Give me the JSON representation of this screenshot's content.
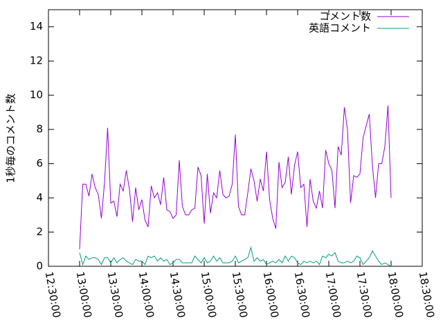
{
  "chart_data": {
    "type": "line",
    "ylabel": "1秒毎のコメント数",
    "x": [
      780,
      783,
      786,
      789,
      792,
      795,
      798,
      801,
      804,
      807,
      810,
      813,
      816,
      819,
      822,
      825,
      828,
      831,
      834,
      837,
      840,
      843,
      846,
      849,
      852,
      855,
      858,
      861,
      864,
      867,
      870,
      873,
      876,
      879,
      882,
      885,
      888,
      891,
      894,
      897,
      900,
      903,
      906,
      909,
      912,
      915,
      918,
      921,
      924,
      927,
      930,
      933,
      936,
      939,
      942,
      945,
      948,
      951,
      954,
      957,
      960,
      963,
      966,
      969,
      972,
      975,
      978,
      981,
      984,
      987,
      990,
      993,
      996,
      999,
      1002,
      1005,
      1008,
      1011,
      1014,
      1017,
      1020,
      1023,
      1026,
      1029,
      1032,
      1035,
      1038,
      1041,
      1044,
      1047,
      1050,
      1053,
      1056,
      1059,
      1062,
      1065,
      1068,
      1071,
      1074,
      1077,
      1080
    ],
    "series": [
      {
        "name": "コメント数",
        "color": "#9400d3",
        "values": [
          1.0,
          4.8,
          4.8,
          4.1,
          5.4,
          4.6,
          4.2,
          2.8,
          4.9,
          8.1,
          3.7,
          3.8,
          2.9,
          4.8,
          4.4,
          5.6,
          4.5,
          2.6,
          4.6,
          3.3,
          3.9,
          2.7,
          2.3,
          4.7,
          4.0,
          4.3,
          3.6,
          5.2,
          3.3,
          3.2,
          2.8,
          3.0,
          6.2,
          3.5,
          3.0,
          3.0,
          3.3,
          3.4,
          5.8,
          5.3,
          2.5,
          5.4,
          3.1,
          4.3,
          4.0,
          5.6,
          4.2,
          4.0,
          4.1,
          4.8,
          7.7,
          3.5,
          3.0,
          3.0,
          4.3,
          5.7,
          5.0,
          3.8,
          5.1,
          4.4,
          6.7,
          3.9,
          2.8,
          2.2,
          6.1,
          4.6,
          4.9,
          6.4,
          4.2,
          5.9,
          6.7,
          4.6,
          4.8,
          2.3,
          5.1,
          3.8,
          3.4,
          4.4,
          3.4,
          6.8,
          6.0,
          5.6,
          3.4,
          7.0,
          6.5,
          9.3,
          8.0,
          3.7,
          5.3,
          5.2,
          5.4,
          7.5,
          8.2,
          8.9,
          5.9,
          4.0,
          6.0,
          6.0,
          7.0,
          9.4,
          4.0
        ]
      },
      {
        "name": "英語コメント",
        "color": "#009e73",
        "values": [
          0.8,
          0.1,
          0.6,
          0.4,
          0.5,
          0.5,
          0.4,
          0.1,
          0.5,
          0.5,
          0.2,
          0.5,
          0.2,
          0.4,
          0.5,
          0.3,
          0.2,
          0.1,
          0.4,
          0.3,
          0.3,
          0.1,
          0.6,
          0.5,
          0.6,
          0.3,
          0.5,
          0.3,
          0.4,
          0.1,
          0.2,
          0.4,
          0.4,
          0.2,
          0.2,
          0.2,
          0.2,
          0.6,
          0.4,
          0.2,
          0.5,
          0.2,
          0.3,
          0.6,
          0.3,
          0.5,
          0.2,
          0.2,
          0.2,
          0.3,
          0.6,
          0.2,
          0.3,
          0.4,
          0.5,
          1.1,
          0.3,
          0.5,
          0.3,
          0.4,
          0.1,
          0.2,
          0.3,
          0.2,
          0.4,
          0.2,
          0.6,
          0.3,
          0.6,
          0.5,
          0.2,
          0.1,
          0.3,
          0.2,
          0.3,
          0.2,
          0.3,
          0.1,
          0.6,
          0.5,
          0.7,
          0.6,
          0.8,
          0.3,
          0.2,
          0.2,
          0.3,
          0.2,
          0.3,
          0.6,
          0.5,
          0.1,
          0.3,
          0.5,
          0.9,
          0.6,
          0.3,
          0.1,
          0.2,
          0.1,
          0.0
        ]
      }
    ],
    "xlim": [
      750,
      1110
    ],
    "xticks": [
      {
        "value": 750,
        "label": "12:30:00"
      },
      {
        "value": 780,
        "label": "13:00:00"
      },
      {
        "value": 810,
        "label": "13:30:00"
      },
      {
        "value": 840,
        "label": "14:00:00"
      },
      {
        "value": 870,
        "label": "14:30:00"
      },
      {
        "value": 900,
        "label": "15:00:00"
      },
      {
        "value": 930,
        "label": "15:30:00"
      },
      {
        "value": 960,
        "label": "16:00:00"
      },
      {
        "value": 990,
        "label": "16:30:00"
      },
      {
        "value": 1020,
        "label": "17:00:00"
      },
      {
        "value": 1050,
        "label": "17:30:00"
      },
      {
        "value": 1080,
        "label": "18:00:00"
      },
      {
        "value": 1110,
        "label": "18:30:00"
      }
    ],
    "ylim": [
      0,
      15
    ],
    "yticks": [
      0,
      2,
      4,
      6,
      8,
      10,
      12,
      14
    ],
    "legend": "upper right"
  }
}
